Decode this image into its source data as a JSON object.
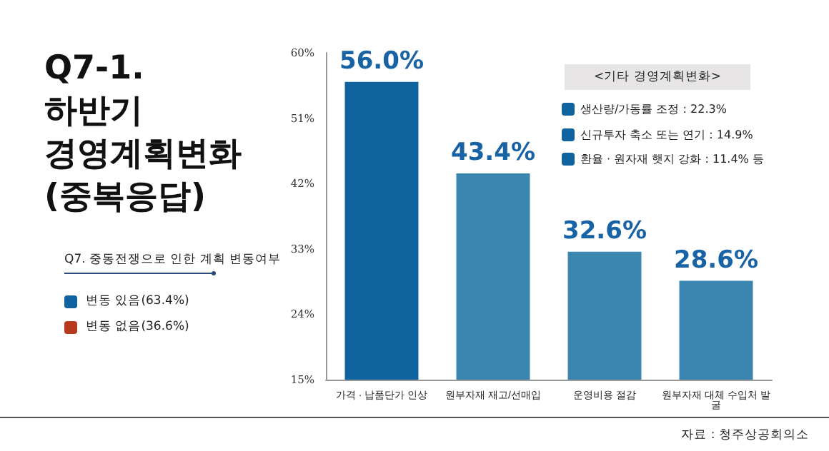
{
  "chart_data": {
    "type": "bar",
    "title": "Q7-1.\n하반기\n경영계획변화\n(중복응답)",
    "categories": [
      "가격 · 납품단가 인상",
      "원부자재 재고/선매입",
      "운영비용 절감",
      "원부자재 대체 수입처 발굴"
    ],
    "values": [
      56.0,
      43.4,
      32.6,
      28.6
    ],
    "colors": [
      "#0f64a0",
      "#3a86b0",
      "#3a86b0",
      "#3a86b0"
    ],
    "value_labels": [
      "56.0%",
      "43.4%",
      "32.6%",
      "28.6%"
    ],
    "ylim": [
      15,
      60
    ],
    "yticks": [
      {
        "value": 15,
        "label": "15%"
      },
      {
        "value": 24,
        "label": "24%"
      },
      {
        "value": 33,
        "label": "33%"
      },
      {
        "value": 42,
        "label": "42%"
      },
      {
        "value": 51,
        "label": "51%"
      },
      {
        "value": 60,
        "label": "60%"
      }
    ],
    "grid": false,
    "annotations": [
      "Q7. 중동전쟁으로 인한 계획 변동여부",
      "변동 있음(63.4%)",
      "변동 없음(36.6%)",
      "<기타 경영계획변화>",
      "생산량/가동률 조정 : 22.3%",
      "신규투자 축소 또는 연기 : 14.9%",
      "환율 · 원자재 햇지 강화 : 11.4% 등",
      "자료 : 청주상공회의소"
    ]
  }
}
